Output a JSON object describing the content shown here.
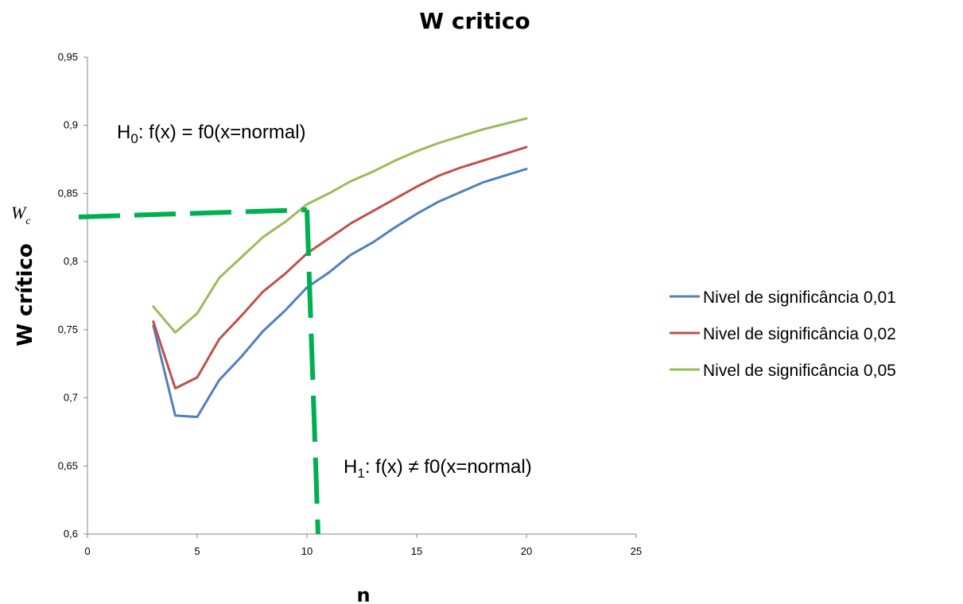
{
  "chart_data": {
    "type": "line",
    "title": "W critico",
    "xlabel": "n",
    "ylabel": "W crítico",
    "xlim": [
      0,
      25
    ],
    "ylim": [
      0.6,
      0.95
    ],
    "x_ticks": [
      "0",
      "5",
      "10",
      "15",
      "20",
      "25"
    ],
    "y_ticks": [
      "0,6",
      "0,65",
      "0,7",
      "0,75",
      "0,8",
      "0,85",
      "0,9",
      "0,95"
    ],
    "grid": false,
    "legend_position": "right",
    "x": [
      3,
      4,
      5,
      6,
      7,
      8,
      9,
      10,
      11,
      12,
      13,
      14,
      15,
      16,
      17,
      18,
      19,
      20
    ],
    "series": [
      {
        "name": "Nivel de significância 0,01",
        "color": "#4f81bd",
        "values": [
          0.753,
          0.687,
          0.686,
          0.713,
          0.73,
          0.749,
          0.764,
          0.781,
          0.792,
          0.805,
          0.814,
          0.825,
          0.835,
          0.844,
          0.851,
          0.858,
          0.863,
          0.868
        ]
      },
      {
        "name": "Nivel de significância 0,02",
        "color": "#c0504d",
        "values": [
          0.756,
          0.707,
          0.715,
          0.743,
          0.76,
          0.778,
          0.791,
          0.806,
          0.817,
          0.828,
          0.837,
          0.846,
          0.855,
          0.863,
          0.869,
          0.874,
          0.879,
          0.884
        ]
      },
      {
        "name": "Nivel de significância 0,05",
        "color": "#9bbb59",
        "values": [
          0.767,
          0.748,
          0.762,
          0.788,
          0.803,
          0.818,
          0.829,
          0.842,
          0.85,
          0.859,
          0.866,
          0.874,
          0.881,
          0.887,
          0.892,
          0.897,
          0.901,
          0.905
        ]
      }
    ],
    "annotations": {
      "h0_main": "H",
      "h0_sub": "0",
      "h0_rest": ": f(x) = f0(x=normal)",
      "h1_main": "H",
      "h1_sub": "1",
      "h1_rest": ": f(x) ≠ f0(x=normal)",
      "wc_main": "W",
      "wc_sub": "c",
      "guide_color": "#00b050",
      "guide_x": 10,
      "guide_y": 0.838
    }
  }
}
